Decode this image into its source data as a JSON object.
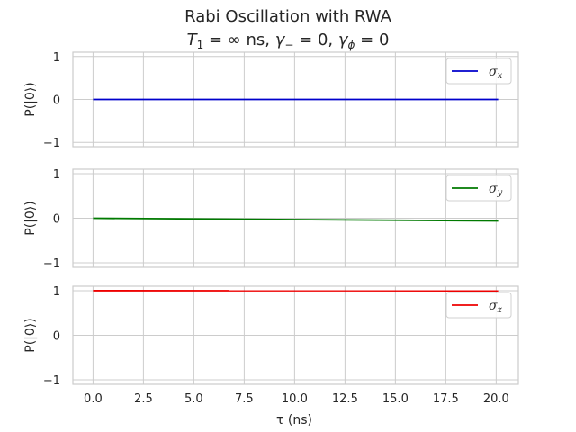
{
  "chart_data": {
    "type": "line",
    "title": "Rabi Oscillation with RWA",
    "subtitle_parts": [
      "T",
      "1",
      " = ∞ ns, ",
      "γ",
      "−",
      " = 0, ",
      "γ",
      "ϕ",
      " = 0"
    ],
    "xlabel": "τ (ns)",
    "x_ticks": [
      "0.0",
      "2.5",
      "5.0",
      "7.5",
      "10.0",
      "12.5",
      "15.0",
      "17.5",
      "20.0"
    ],
    "x_tick_values": [
      0,
      2.5,
      5,
      7.5,
      10,
      12.5,
      15,
      17.5,
      20
    ],
    "xlim": [
      -1.0,
      21.1
    ],
    "grid": true,
    "legend_placement": "upper-right",
    "panels": [
      {
        "ylabel": "P(|0⟩)",
        "ylim": [
          -1.1,
          1.1
        ],
        "y_ticks": [
          "1",
          "0",
          "−1"
        ],
        "y_tick_values": [
          1,
          0,
          -1
        ],
        "series": [
          {
            "name": "σ",
            "subscript": "x",
            "color": "#0000cc",
            "x": [
              0,
              20.1
            ],
            "y": [
              0,
              0
            ]
          }
        ]
      },
      {
        "ylabel": "P(|0⟩)",
        "ylim": [
          -1.1,
          1.1
        ],
        "y_ticks": [
          "1",
          "0",
          "−1"
        ],
        "y_tick_values": [
          1,
          0,
          -1
        ],
        "series": [
          {
            "name": "σ",
            "subscript": "y",
            "color": "#007a00",
            "x": [
              0,
              5,
              10,
              15,
              20.1
            ],
            "y": [
              0,
              -0.015,
              -0.03,
              -0.045,
              -0.06
            ]
          }
        ]
      },
      {
        "ylabel": "P(|0⟩)",
        "ylim": [
          -1.1,
          1.1
        ],
        "y_ticks": [
          "1",
          "0",
          "−1"
        ],
        "y_tick_values": [
          1,
          0,
          -1
        ],
        "series": [
          {
            "name": "σ",
            "subscript": "z",
            "color": "#ee0000",
            "x": [
              0,
              20.1
            ],
            "y": [
              1,
              0.998
            ]
          }
        ]
      }
    ]
  }
}
